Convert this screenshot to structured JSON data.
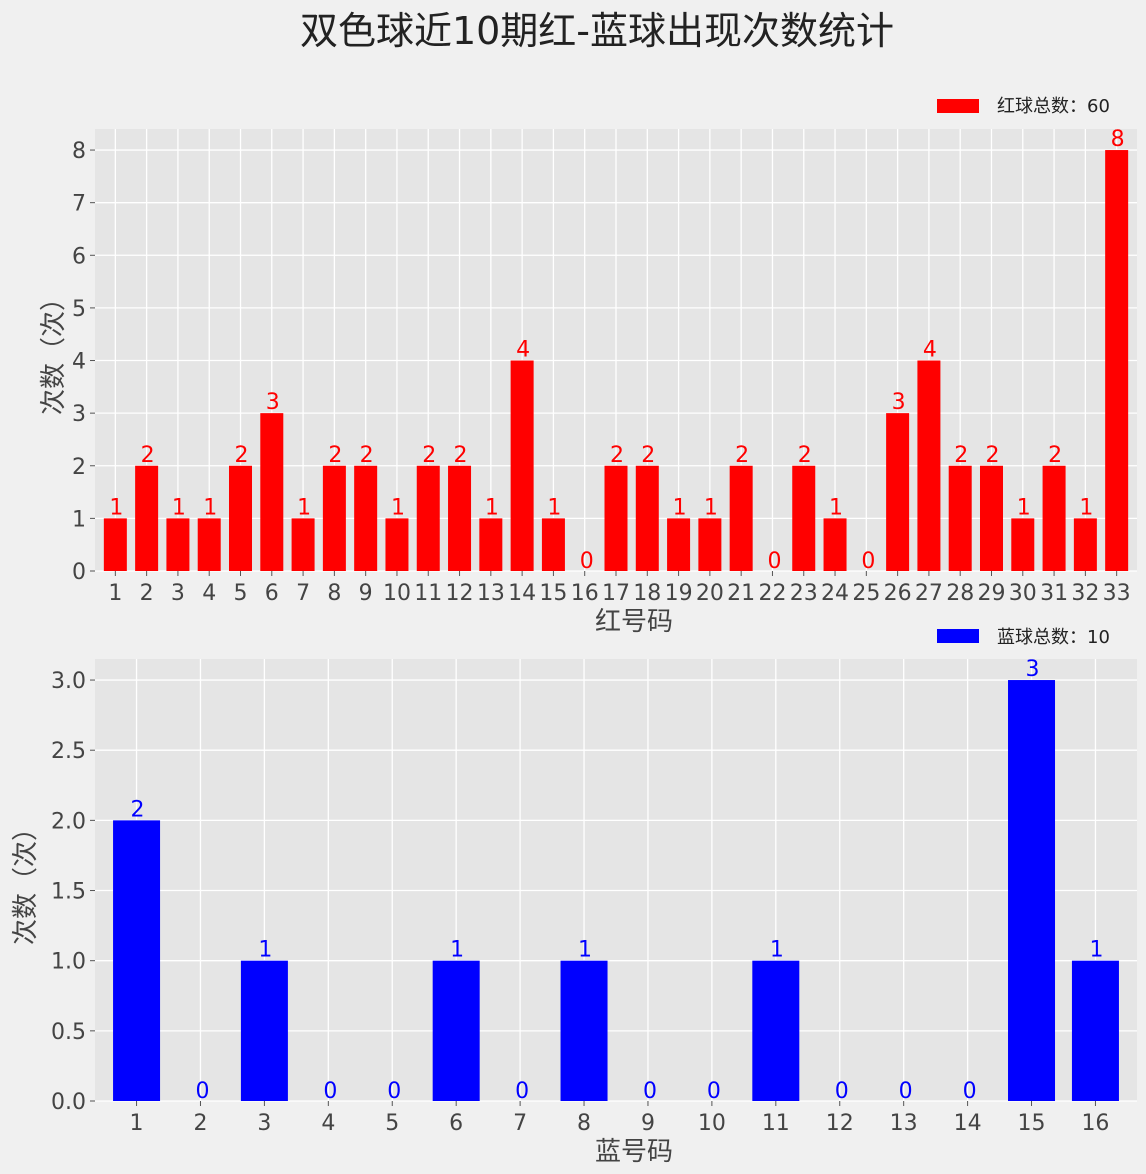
{
  "title": "双色球近10期红-蓝球出现次数统计",
  "chart_data": [
    {
      "type": "bar",
      "xlabel": "红号码",
      "ylabel": "次数（次）",
      "categories": [
        "1",
        "2",
        "3",
        "4",
        "5",
        "6",
        "7",
        "8",
        "9",
        "10",
        "11",
        "12",
        "13",
        "14",
        "15",
        "16",
        "17",
        "18",
        "19",
        "20",
        "21",
        "22",
        "23",
        "24",
        "25",
        "26",
        "27",
        "28",
        "29",
        "30",
        "31",
        "32",
        "33"
      ],
      "series": [
        {
          "name": "红球总数：60",
          "values": [
            1,
            2,
            1,
            1,
            2,
            3,
            1,
            2,
            2,
            1,
            2,
            2,
            1,
            4,
            1,
            0,
            2,
            2,
            1,
            1,
            2,
            0,
            2,
            1,
            0,
            3,
            4,
            2,
            2,
            1,
            2,
            1,
            8
          ]
        }
      ],
      "yticks": [
        "0",
        "1",
        "2",
        "3",
        "4",
        "5",
        "6",
        "7",
        "8"
      ],
      "ylim": [
        0,
        8.4
      ],
      "grid": true,
      "legend": "top-right",
      "color": "#ff0000"
    },
    {
      "type": "bar",
      "xlabel": "蓝号码",
      "ylabel": "次数（次）",
      "categories": [
        "1",
        "2",
        "3",
        "4",
        "5",
        "6",
        "7",
        "8",
        "9",
        "10",
        "11",
        "12",
        "13",
        "14",
        "15",
        "16"
      ],
      "series": [
        {
          "name": "蓝球总数：10",
          "values": [
            2,
            0,
            1,
            0,
            0,
            1,
            0,
            1,
            0,
            0,
            1,
            0,
            0,
            0,
            3,
            1
          ]
        }
      ],
      "yticks": [
        "0.0",
        "0.5",
        "1.0",
        "1.5",
        "2.0",
        "2.5",
        "3.0"
      ],
      "ylim": [
        0,
        3.15
      ],
      "grid": true,
      "legend": "top-right",
      "color": "#0000ff"
    }
  ]
}
